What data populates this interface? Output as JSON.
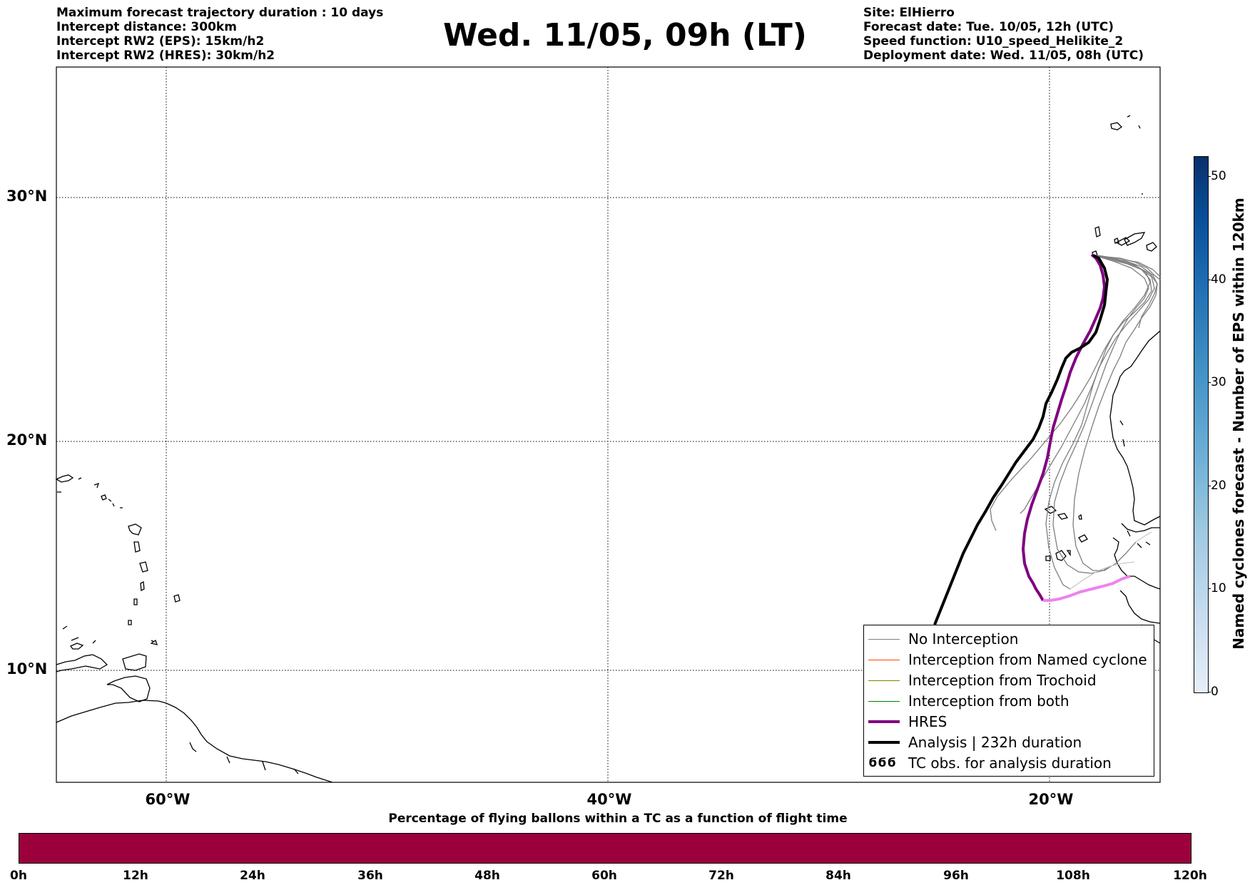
{
  "header": {
    "left_lines": [
      "Maximum forecast trajectory duration : 10 days",
      "Intercept distance: 300km",
      "Intercept RW2 (EPS):  15km/h2",
      "Intercept RW2 (HRES): 30km/h2"
    ],
    "title": "Wed. 11/05, 09h (LT)",
    "right_lines": [
      "Site: ElHierro",
      "Forecast date: Tue. 10/05, 12h (UTC)",
      "Speed function: U10_speed_Helikite_2",
      "Deployment date: Wed. 11/05, 08h (UTC)"
    ]
  },
  "map": {
    "lat_labels": [
      "30°N",
      "20°N",
      "10°N"
    ],
    "lon_labels": [
      "60°W",
      "40°W",
      "20°W"
    ],
    "colors": {
      "no_interception": "#7f7f7f",
      "named_cyclone": "#ff4500",
      "trochoid": "#808000",
      "both": "#008000",
      "hres": "#800080",
      "hres_late": "#ee82ee",
      "analysis": "#000000"
    }
  },
  "legend": {
    "items": [
      {
        "label": "No Interception",
        "color": "#7f7f7f",
        "width": 1
      },
      {
        "label": "Interception from Named cyclone",
        "color": "#ff4500",
        "width": 1
      },
      {
        "label": "Interception from Trochoid",
        "color": "#808000",
        "width": 1
      },
      {
        "label": "Interception from both",
        "color": "#008000",
        "width": 1
      },
      {
        "label": "HRES",
        "color": "#800080",
        "width": 4
      },
      {
        "label": "Analysis | 232h duration",
        "color": "#000000",
        "width": 4
      }
    ],
    "tc_symbol": "ϭϭϭ",
    "tc_label": "TC obs. for analysis duration"
  },
  "colorbar": {
    "label": "Named cyclones forecast - Number of EPS within 120km",
    "ticks": [
      "0",
      "10",
      "20",
      "30",
      "40",
      "50"
    ]
  },
  "bottom_bar": {
    "title": "Percentage of flying ballons within a TC as a function of flight time",
    "ticks": [
      "0h",
      "12h",
      "24h",
      "36h",
      "48h",
      "60h",
      "72h",
      "84h",
      "96h",
      "108h",
      "120h"
    ],
    "color": "#9b003d"
  }
}
